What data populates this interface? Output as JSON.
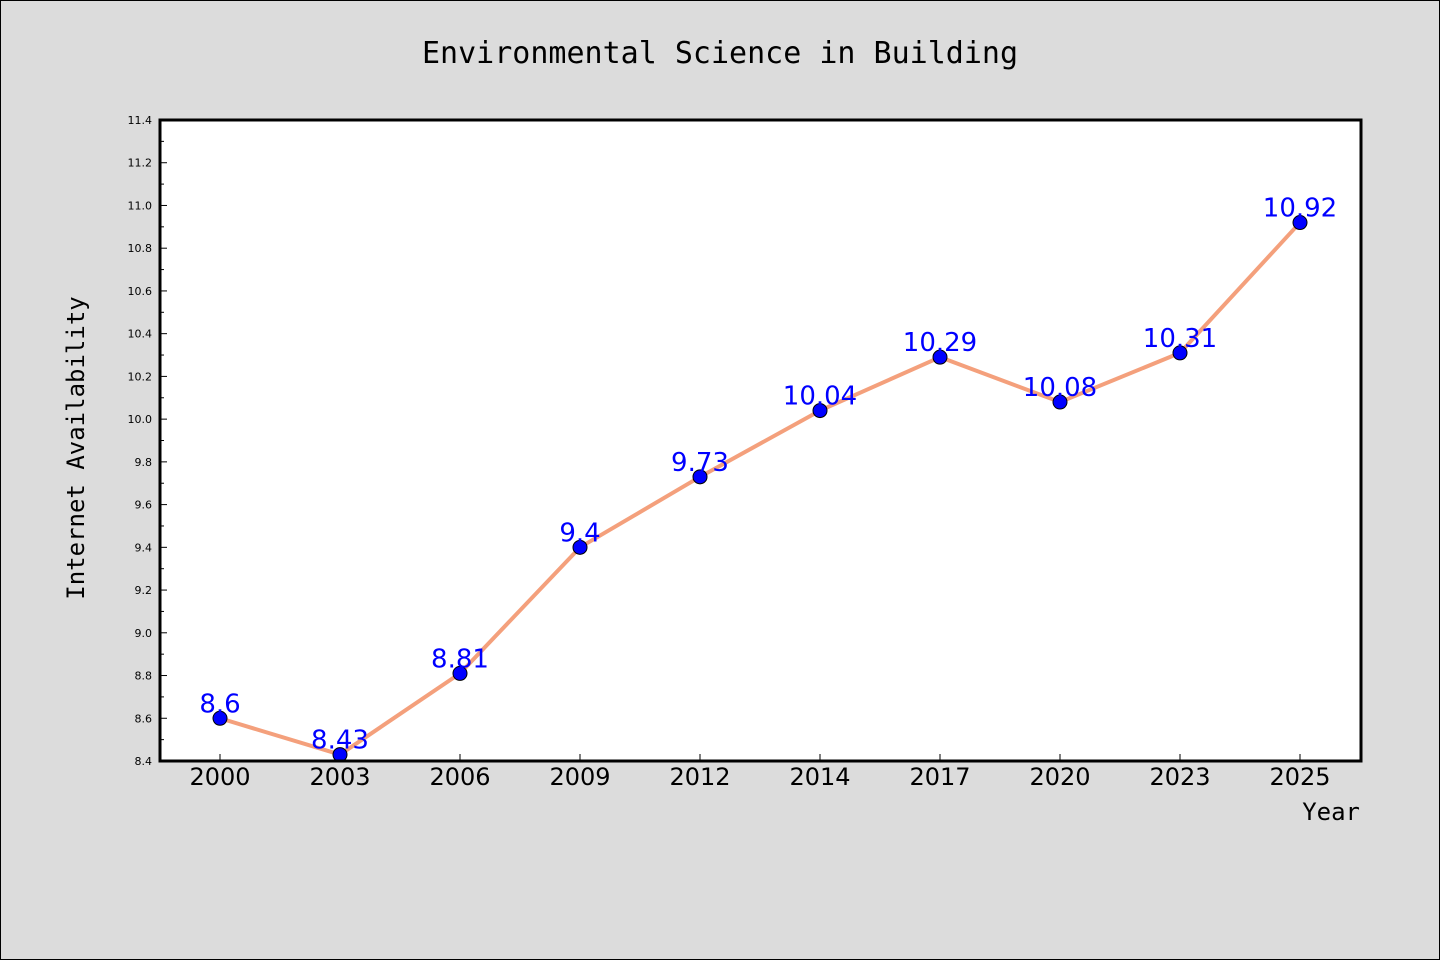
{
  "chart_data": {
    "type": "line",
    "title": "Environmental Science in Building",
    "xlabel": "Year",
    "ylabel": "Internet Availability",
    "categories": [
      "2000",
      "2003",
      "2006",
      "2009",
      "2012",
      "2014",
      "2017",
      "2020",
      "2023",
      "2025"
    ],
    "series": [
      {
        "values": [
          8.6,
          8.43,
          8.81,
          9.4,
          9.73,
          10.04,
          10.29,
          10.08,
          10.31,
          10.92
        ],
        "labels": [
          "8.6",
          "8.43",
          "8.81",
          "9.4",
          "9.73",
          "10.04",
          "10.29",
          "10.08",
          "10.31",
          "10.92"
        ],
        "line_color": "#f4a07c",
        "marker_color": "#0000ff"
      }
    ],
    "ylim": [
      8.4,
      11.4
    ],
    "yticks": [
      "8.4",
      "8.6",
      "8.8",
      "9.0",
      "9.2",
      "9.4",
      "9.6",
      "9.8",
      "10.0",
      "10.2",
      "10.4",
      "10.6",
      "10.8",
      "11.0",
      "11.2",
      "11.4"
    ],
    "grid": false,
    "legend": "none",
    "background": "#dcdcdc",
    "plot_background": "#ffffff"
  }
}
